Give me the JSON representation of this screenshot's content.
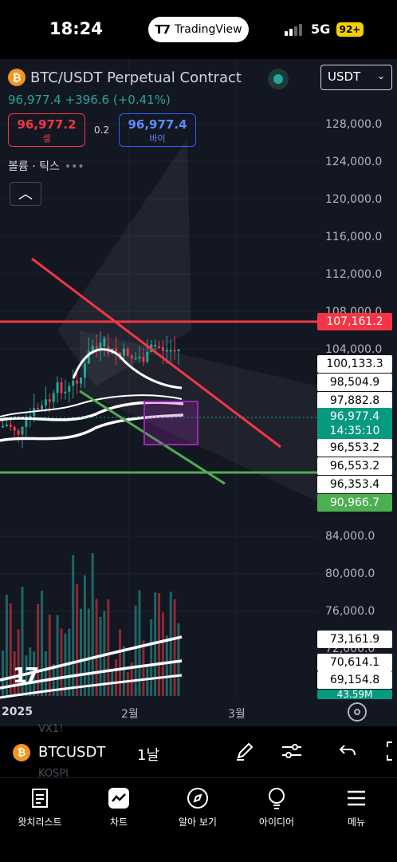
{
  "status_bar": {
    "time": "18:24",
    "app_pill": "TradingView",
    "network": "5G",
    "battery": "92+"
  },
  "header": {
    "symbol_title": "BTC/USDT Perpetual Contract",
    "currency": "USDT",
    "last_price": "96,977.4",
    "change": "+396.6",
    "change_pct": "(+0.41%)",
    "sell_price": "96,977.2",
    "sell_label": "셀",
    "spread": "0.2",
    "buy_price": "96,977.4",
    "buy_label": "바이",
    "volume_label": "볼륨 · 틱스",
    "volume_dots": "•••",
    "collapse_icon": "chevron-up-icon"
  },
  "price_axis": [
    "128,000.0",
    "124,000.0",
    "120,000.0",
    "116,000.0",
    "112,000.0",
    "108,000.0",
    "104,000.0",
    "84,000.0",
    "80,000.0",
    "76,000.0",
    "72,000.0"
  ],
  "price_tags": {
    "resistance": "107,161.2",
    "ma1": "100,133.3",
    "ma2": "98,504.9",
    "ma3": "97,882.8",
    "current": "96,977.4",
    "countdown": "14:35:10",
    "level1": "96,553.2",
    "level2": "96,553.2",
    "level3": "96,353.4",
    "support": "90,966.7",
    "vol1": "73,161.9",
    "vol2": "70,614.1",
    "vol3": "69,154.8",
    "vol4": "43.59M"
  },
  "time_axis": [
    "2025",
    "2월",
    "3월"
  ],
  "colors": {
    "bg": "#131722",
    "up": "#26a69a",
    "down": "#f23645",
    "resistance": "#f23645",
    "support": "#4caf50",
    "box": "#9c27b0"
  },
  "toolbar": {
    "symbol": "BTCUSDT",
    "interval": "1날",
    "ghost_1": "VX1!",
    "ghost_2": "KOSPI",
    "icons": [
      "pen-icon",
      "sliders-icon",
      "undo-icon",
      "fullscreen-icon"
    ]
  },
  "tabs": [
    {
      "label": "왓치리스트",
      "icon": "watchlist-icon"
    },
    {
      "label": "차트",
      "icon": "chart-icon"
    },
    {
      "label": "알아 보기",
      "icon": "compass-icon"
    },
    {
      "label": "아이디어",
      "icon": "bulb-icon"
    },
    {
      "label": "메뉴",
      "icon": "menu-icon"
    }
  ]
}
